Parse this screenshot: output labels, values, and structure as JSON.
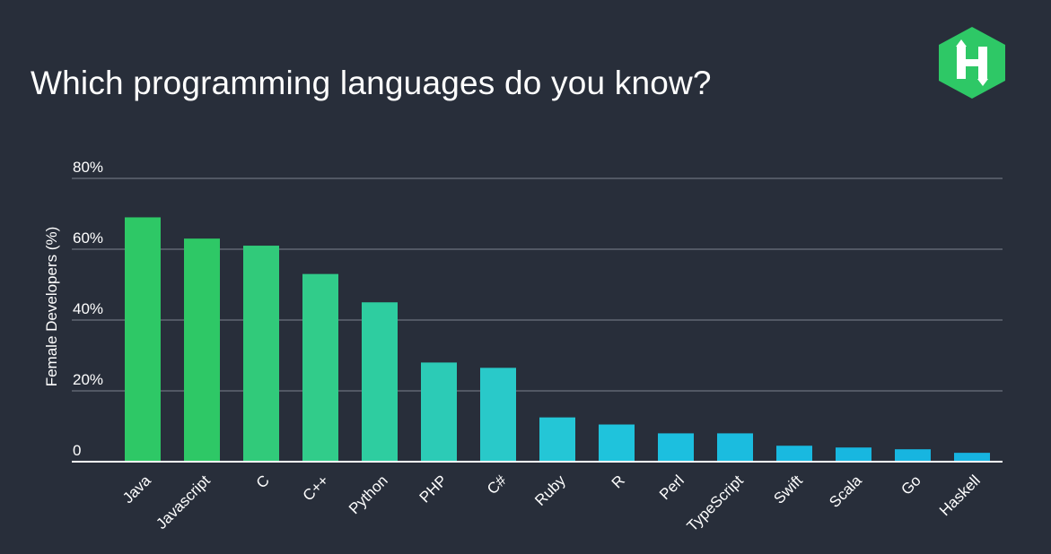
{
  "title": "Which programming languages do you know?",
  "logo": {
    "icon": "hackerrank-hexagon-h-icon",
    "letter": "H",
    "color": "#2ec866"
  },
  "chart_data": {
    "type": "bar",
    "title": "Which programming languages do you know?",
    "xlabel": "",
    "ylabel": "Female Developers (%)",
    "ylim": [
      0,
      80
    ],
    "yticks": [
      0,
      20,
      40,
      60,
      80
    ],
    "ytick_labels": [
      "0",
      "20%",
      "40%",
      "60%",
      "80%"
    ],
    "grid": true,
    "categories": [
      "Java",
      "Javascript",
      "C",
      "C++",
      "Python",
      "PHP",
      "C#",
      "Ruby",
      "R",
      "Perl",
      "TypeScript",
      "Swift",
      "Scala",
      "Go",
      "Haskell"
    ],
    "values": [
      69,
      63,
      61,
      53,
      45,
      28,
      26.5,
      12.5,
      10.5,
      8,
      8,
      4.5,
      4,
      3.5,
      2.5
    ],
    "colors": [
      "#2ec866",
      "#2ec866",
      "#31ca7a",
      "#31cc8a",
      "#2ecda0",
      "#2ccbb6",
      "#29c9c9",
      "#24c6d6",
      "#1fc3dc",
      "#1cbfdf",
      "#1bbcdf",
      "#19b9e0",
      "#18b7e0",
      "#17b5e0",
      "#16b3e0"
    ]
  }
}
